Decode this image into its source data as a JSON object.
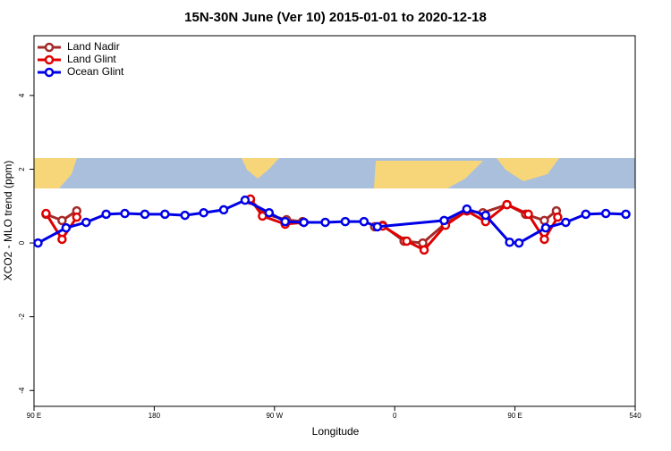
{
  "chart_data": {
    "type": "line",
    "title": "15N-30N June (Ver 10)   2015-01-01 to 2020-12-18",
    "x_label": "Longitude",
    "y_label": "XCO2 - MLO trend (ppm)",
    "xlim": [
      90,
      540
    ],
    "xticks": [
      {
        "value": 90,
        "label": "90 E"
      },
      180,
      {
        "value": 270,
        "label": "90 W"
      },
      {
        "value": 360,
        "label": "0"
      },
      {
        "value": 450,
        "label": "90 E"
      },
      540
    ],
    "ylim": [
      -4.43,
      5.62
    ],
    "yticks": [
      -4,
      -2,
      0,
      2,
      4
    ],
    "legend": "top-left",
    "series": [
      {
        "name": "Land Nadir",
        "color": "#a52a2a",
        "x": [
          99,
          111,
          122,
          null,
          252,
          263,
          279,
          291,
          null,
          345,
          351,
          367,
          381,
          398,
          414,
          426,
          444,
          458,
          472,
          481
        ],
        "values": [
          0.78,
          0.61,
          0.87,
          null,
          1.16,
          0.78,
          0.63,
          0.58,
          null,
          0.44,
          0.48,
          0.05,
          0.0,
          0.53,
          0.87,
          0.82,
          1.04,
          0.78,
          0.61,
          0.87
        ]
      },
      {
        "name": "Land Glint",
        "color": "#e00000",
        "x": [
          99,
          111,
          122,
          null,
          252,
          261,
          278,
          292,
          null,
          351,
          369,
          382,
          398,
          414,
          428,
          444,
          460,
          472,
          482
        ],
        "values": [
          0.8,
          0.1,
          0.7,
          null,
          1.19,
          0.73,
          0.51,
          0.56,
          null,
          0.46,
          0.05,
          -0.19,
          0.48,
          0.87,
          0.58,
          1.04,
          0.78,
          0.1,
          0.7
        ]
      },
      {
        "name": "Ocean Glint",
        "color": "#0000e6",
        "x": [
          93,
          114,
          129,
          144,
          158,
          173,
          188,
          203,
          217,
          232,
          248,
          266,
          278,
          292,
          308,
          323,
          337,
          347,
          397,
          414,
          428,
          446,
          453,
          473,
          488,
          503,
          518,
          533
        ],
        "values": [
          0.0,
          0.41,
          0.56,
          0.78,
          0.8,
          0.78,
          0.78,
          0.75,
          0.82,
          0.9,
          1.16,
          0.82,
          0.58,
          0.56,
          0.56,
          0.58,
          0.58,
          0.44,
          0.61,
          0.92,
          0.75,
          0.02,
          0.0,
          0.41,
          0.56,
          0.78,
          0.8,
          0.78
        ]
      }
    ]
  }
}
